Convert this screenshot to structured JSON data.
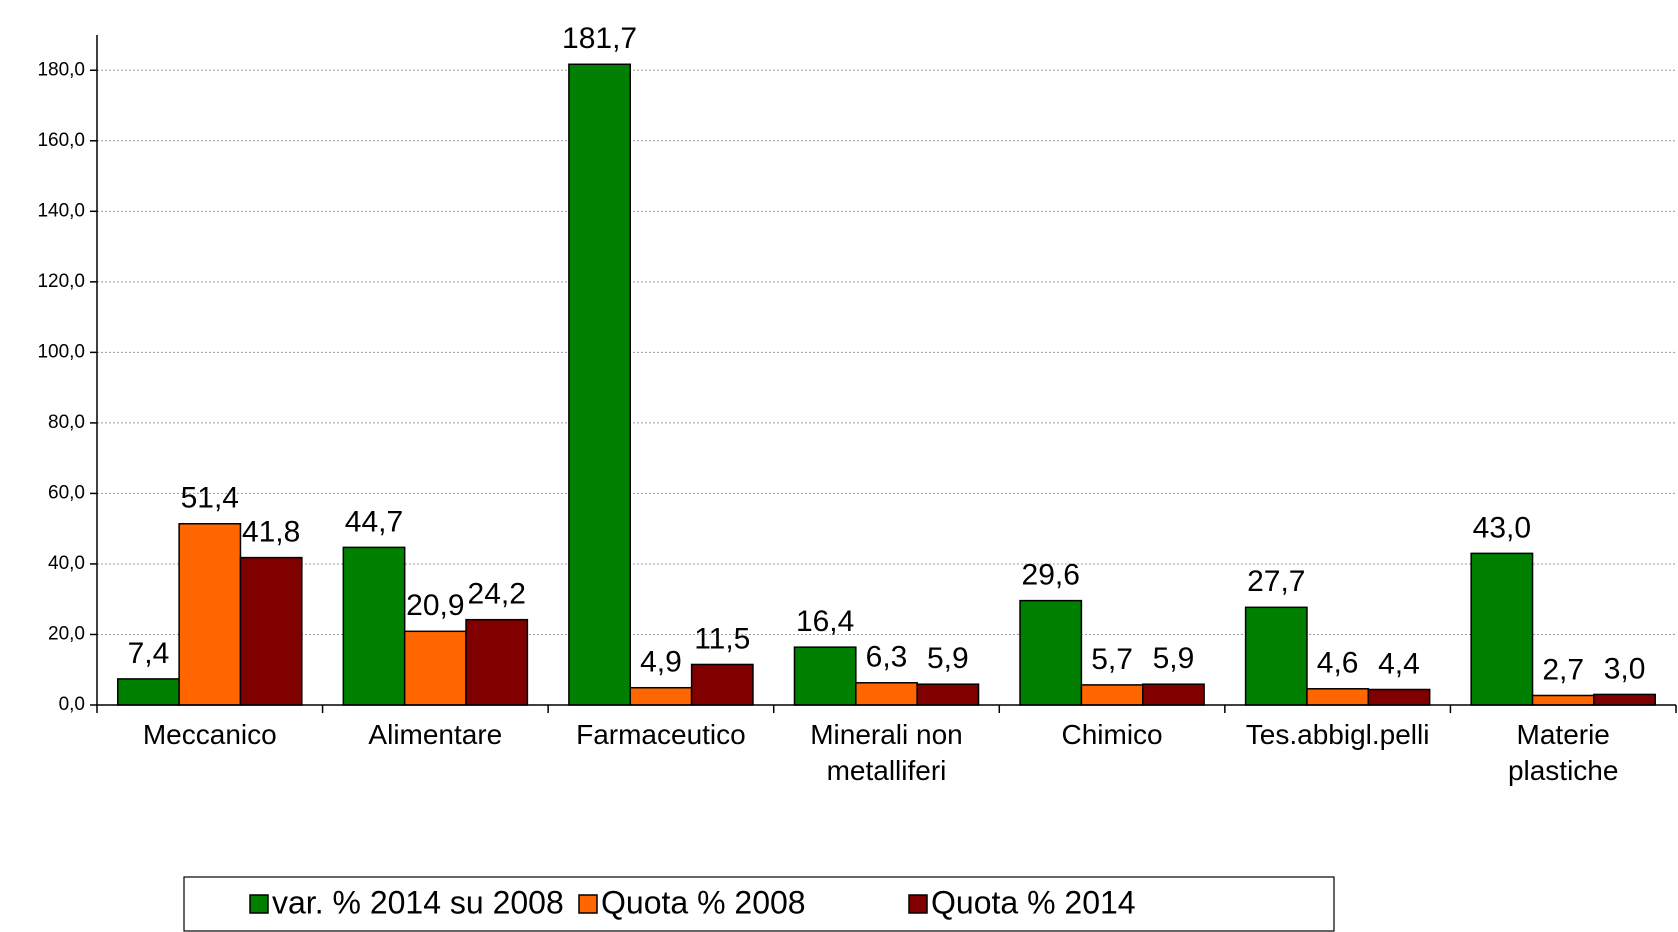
{
  "chart_data": {
    "type": "bar",
    "categories": [
      "Meccanico",
      "Alimentare",
      "Farmaceutico",
      "Minerali non\nmetalliferi",
      "Chimico",
      "Tes.abbigl.pelli",
      "Materie\nplastiche"
    ],
    "series": [
      {
        "name": "var. % 2014 su 2008",
        "color": "#008000",
        "values": [
          7.4,
          44.7,
          181.7,
          16.4,
          29.6,
          27.7,
          43.0
        ],
        "value_labels": [
          "7,4",
          "44,7",
          "181,7",
          "16,4",
          "29,6",
          "27,7",
          "43,0"
        ]
      },
      {
        "name": "Quota % 2008",
        "color": "#ff6600",
        "values": [
          51.4,
          20.9,
          4.9,
          6.3,
          5.7,
          4.6,
          2.7
        ],
        "value_labels": [
          "51,4",
          "20,9",
          "4,9",
          "6,3",
          "5,7",
          "4,6",
          "2,7"
        ]
      },
      {
        "name": "Quota % 2014",
        "color": "#800000",
        "values": [
          41.8,
          24.2,
          11.5,
          5.9,
          5.9,
          4.4,
          3.0
        ],
        "value_labels": [
          "41,8",
          "24,2",
          "11,5",
          "5,9",
          "5,9",
          "4,4",
          "3,0"
        ]
      }
    ],
    "ylim": [
      0,
      190
    ],
    "yticks": [
      {
        "value": 0,
        "label": "0,0"
      },
      {
        "value": 20,
        "label": "20,0"
      },
      {
        "value": 40,
        "label": "40,0"
      },
      {
        "value": 60,
        "label": "60,0"
      },
      {
        "value": 80,
        "label": "80,0"
      },
      {
        "value": 100,
        "label": "100,0"
      },
      {
        "value": 120,
        "label": "120,0"
      },
      {
        "value": 140,
        "label": "140,0"
      },
      {
        "value": 160,
        "label": "160,0"
      },
      {
        "value": 180,
        "label": "180,0"
      }
    ],
    "grid": true,
    "legend": "bottom"
  }
}
